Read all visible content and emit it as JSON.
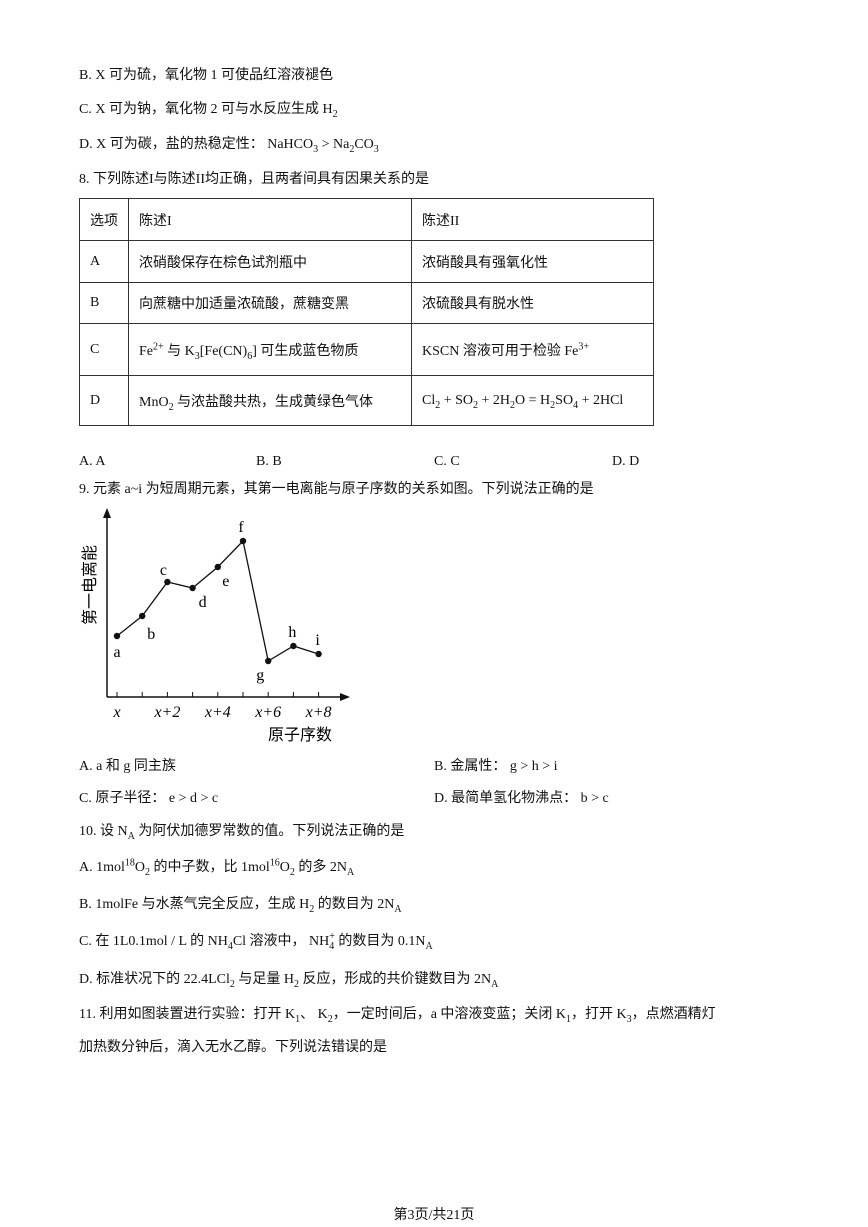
{
  "q7": {
    "options": [
      [
        "B. X 可为硫，氧化物 1 可使品红溶液褪色"
      ],
      [
        "C. X 可为钠，氧化物 2 可与水反应生成 H",
        {
          "sub": "2"
        }
      ],
      [
        "D. X 可为碳，盐的热稳定性： NaHCO",
        {
          "sub": "3"
        },
        " > Na",
        {
          "sub": "2"
        },
        "CO",
        {
          "sub": "3"
        }
      ]
    ]
  },
  "q8": {
    "stem": [
      "8. 下列陈述I与陈述II均正确，且两者间具有因果关系的是"
    ],
    "table": {
      "header": [
        [
          "选项"
        ],
        [
          "陈述I"
        ],
        [
          "陈述II"
        ]
      ],
      "rows": [
        [
          [
            "A"
          ],
          [
            "浓硝酸保存在棕色试剂瓶中"
          ],
          [
            "浓硝酸具有强氧化性"
          ]
        ],
        [
          [
            "B"
          ],
          [
            "向蔗糖中加适量浓硫酸，蔗糖变黑"
          ],
          [
            "浓硫酸具有脱水性"
          ]
        ],
        [
          [
            "C"
          ],
          [
            "Fe",
            {
              "sup": "2+"
            },
            " 与 K",
            {
              "sub": "3"
            },
            "[Fe(CN)",
            {
              "sub": "6"
            },
            "] 可生成蓝色物质"
          ],
          [
            "KSCN 溶液可用于检验 Fe",
            {
              "sup": "3+"
            }
          ]
        ],
        [
          [
            "D"
          ],
          [
            "MnO",
            {
              "sub": "2"
            },
            " 与浓盐酸共热，生成黄绿色气体"
          ],
          [
            "Cl",
            {
              "sub": "2"
            },
            " + SO",
            {
              "sub": "2"
            },
            " + 2H",
            {
              "sub": "2"
            },
            "O = H",
            {
              "sub": "2"
            },
            "SO",
            {
              "sub": "4"
            },
            " + 2HCl"
          ]
        ]
      ]
    },
    "options": [
      [
        "A. A"
      ],
      [
        "B. B"
      ],
      [
        "C. C"
      ],
      [
        "D. D"
      ]
    ]
  },
  "q9": {
    "stem": [
      "9. 元素 a~i 为短周期元素，其第一电离能与原子序数的关系如图。下列说法正确的是"
    ],
    "figure": {
      "y_label": "第一电离能",
      "x_label": "原子序数",
      "x_ticks": [
        "x",
        "x+2",
        "x+4",
        "x+6",
        "x+8"
      ],
      "points": [
        "a",
        "b",
        "c",
        "d",
        "e",
        "f",
        "g",
        "h",
        "i"
      ]
    },
    "options": [
      [
        "A. a 和 g 同主族"
      ],
      [
        "B. 金属性： g > h > i"
      ],
      [
        "C. 原子半径： e > d > c"
      ],
      [
        "D. 最简单氢化物沸点： b > c"
      ]
    ]
  },
  "q10": {
    "stem": [
      "10. 设 N",
      {
        "sub": "A"
      },
      " 为阿伏加德罗常数的值。下列说法正确的是"
    ],
    "options": [
      [
        "A. 1mol",
        {
          "sup": "18"
        },
        "O",
        {
          "sub": "2"
        },
        " 的中子数，比 1mol",
        {
          "sup": "16"
        },
        "O",
        {
          "sub": "2"
        },
        " 的多 2N",
        {
          "sub": "A"
        }
      ],
      [
        "B. 1molFe 与水蒸气完全反应，生成 H",
        {
          "sub": "2"
        },
        " 的数目为 2N",
        {
          "sub": "A"
        }
      ],
      [
        "C. 在 1L0.1mol / L 的 NH",
        {
          "sub": "4"
        },
        "Cl 溶液中， NH",
        {
          "sub": "4",
          "sup": "+"
        },
        " 的数目为 0.1N",
        {
          "sub": "A"
        }
      ],
      [
        "D. 标准状况下的 22.4LCl",
        {
          "sub": "2"
        },
        " 与足量 H",
        {
          "sub": "2"
        },
        " 反应，形成的共价键数目为 2N",
        {
          "sub": "A"
        }
      ]
    ]
  },
  "q11": {
    "lines": [
      [
        "11. 利用如图装置进行实验：打开 K",
        {
          "sub": "1"
        },
        "、 K",
        {
          "sub": "2"
        },
        "，一定时间后，a 中溶液变蓝；关闭 K",
        {
          "sub": "1"
        },
        "，打开 K",
        {
          "sub": "3"
        },
        "，点燃酒精灯"
      ],
      [
        "加热数分钟后，滴入无水乙醇。下列说法错误的是"
      ]
    ]
  },
  "footer": "第3页/共21页"
}
